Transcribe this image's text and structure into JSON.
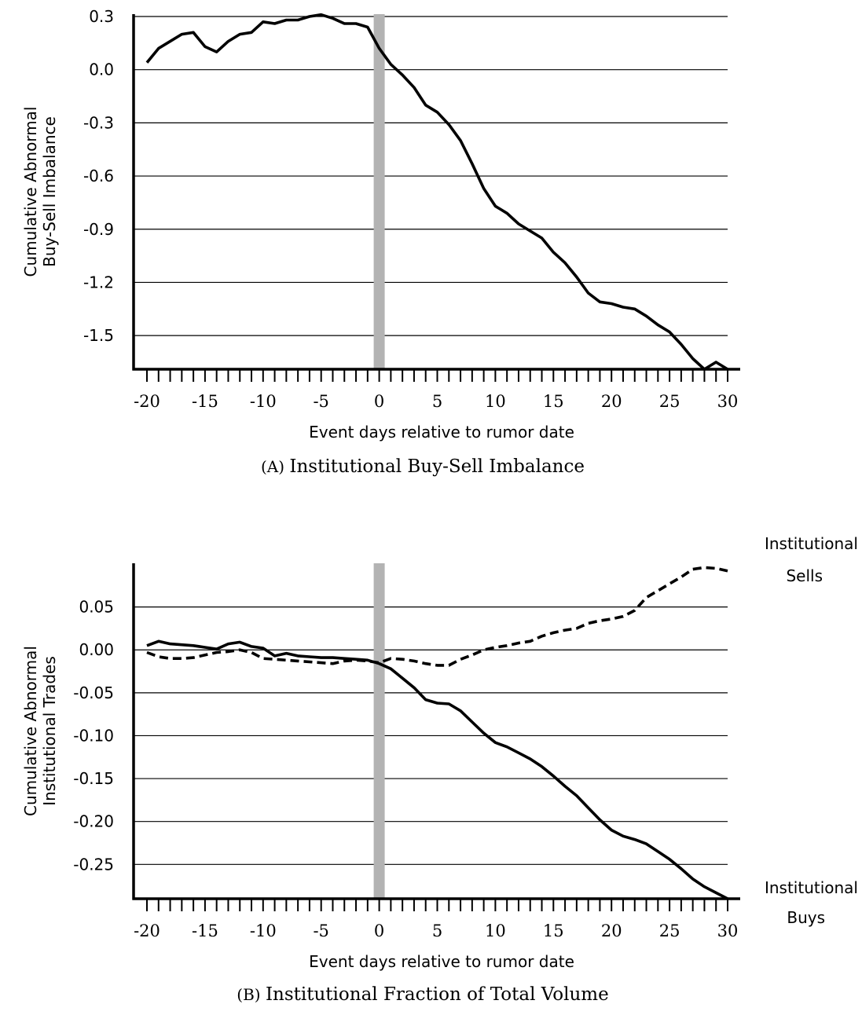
{
  "chart_data": [
    {
      "type": "line",
      "caption_letter": "(A)",
      "caption_text": "Institutional Buy-Sell Imbalance",
      "xlabel": "Event days relative to rumor date",
      "ylabel_lines": [
        "Cumulative Abnormal",
        "Buy-Sell Imbalance"
      ],
      "xlim": [
        -20,
        30
      ],
      "ylim": [
        -1.69,
        0.3
      ],
      "xticks": [
        -20,
        -15,
        -10,
        -5,
        0,
        5,
        10,
        15,
        20,
        25,
        30
      ],
      "yticks": [
        0.3,
        0.0,
        -0.3,
        -0.6,
        -0.9,
        -1.2,
        -1.5
      ],
      "ytick_labels": [
        "0.3",
        "0.0",
        "-0.3",
        "-0.6",
        "-0.9",
        "-1.2",
        "-1.5"
      ],
      "grid": "horizontal",
      "highlight_x": 0,
      "series": [
        {
          "style": "solid",
          "x": [
            -20,
            -19,
            -18,
            -17,
            -16,
            -15,
            -14,
            -13,
            -12,
            -11,
            -10,
            -9,
            -8,
            -7,
            -6,
            -5,
            -4,
            -3,
            -2,
            -1,
            0,
            1,
            2,
            3,
            4,
            5,
            6,
            7,
            8,
            9,
            10,
            11,
            12,
            13,
            14,
            15,
            16,
            17,
            18,
            19,
            20,
            21,
            22,
            23,
            24,
            25,
            26,
            27,
            28,
            29,
            30
          ],
          "y": [
            0.04,
            0.12,
            0.16,
            0.2,
            0.21,
            0.13,
            0.1,
            0.16,
            0.2,
            0.21,
            0.27,
            0.26,
            0.28,
            0.28,
            0.3,
            0.31,
            0.29,
            0.26,
            0.26,
            0.24,
            0.12,
            0.03,
            -0.03,
            -0.1,
            -0.2,
            -0.24,
            -0.31,
            -0.4,
            -0.53,
            -0.67,
            -0.77,
            -0.81,
            -0.87,
            -0.91,
            -0.95,
            -1.03,
            -1.09,
            -1.17,
            -1.26,
            -1.31,
            -1.32,
            -1.34,
            -1.35,
            -1.39,
            -1.44,
            -1.48,
            -1.55,
            -1.63,
            -1.69,
            -1.65,
            -1.69
          ]
        }
      ]
    },
    {
      "type": "line",
      "caption_letter": "(B)",
      "caption_text": "Institutional Fraction of Total Volume",
      "xlabel": "Event days relative to rumor date",
      "ylabel_lines": [
        "Cumulative Abnormal",
        "Institutional Trades"
      ],
      "xlim": [
        -20,
        30
      ],
      "ylim": [
        -0.29,
        0.1
      ],
      "xticks": [
        -20,
        -15,
        -10,
        -5,
        0,
        5,
        10,
        15,
        20,
        25,
        30
      ],
      "yticks": [
        0.05,
        0.0,
        -0.05,
        -0.1,
        -0.15,
        -0.2,
        -0.25
      ],
      "ytick_labels": [
        "0.05",
        "0.00",
        "-0.05",
        "-0.10",
        "-0.15",
        "-0.20",
        "-0.25"
      ],
      "grid": "horizontal",
      "highlight_x": 0,
      "series": [
        {
          "name_lines": [
            "Institutional",
            "Sells"
          ],
          "style": "dashed",
          "x": [
            -20,
            -19,
            -18,
            -17,
            -16,
            -15,
            -14,
            -13,
            -12,
            -11,
            -10,
            -9,
            -8,
            -7,
            -6,
            -5,
            -4,
            -3,
            -2,
            -1,
            0,
            1,
            2,
            3,
            4,
            5,
            6,
            7,
            8,
            9,
            10,
            11,
            12,
            13,
            14,
            15,
            16,
            17,
            18,
            19,
            20,
            21,
            22,
            23,
            24,
            25,
            26,
            27,
            28,
            29,
            30
          ],
          "y": [
            -0.003,
            -0.008,
            -0.01,
            -0.01,
            -0.009,
            -0.006,
            -0.003,
            -0.002,
            0.0,
            -0.003,
            -0.01,
            -0.011,
            -0.012,
            -0.013,
            -0.014,
            -0.015,
            -0.016,
            -0.013,
            -0.012,
            -0.013,
            -0.015,
            -0.01,
            -0.011,
            -0.013,
            -0.016,
            -0.018,
            -0.018,
            -0.011,
            -0.006,
            0.0,
            0.003,
            0.005,
            0.008,
            0.01,
            0.016,
            0.02,
            0.023,
            0.025,
            0.031,
            0.034,
            0.036,
            0.039,
            0.046,
            0.061,
            0.069,
            0.077,
            0.085,
            0.094,
            0.096,
            0.095,
            0.092
          ]
        },
        {
          "name_lines": [
            "Institutional",
            "Buys"
          ],
          "style": "solid",
          "x": [
            -20,
            -19,
            -18,
            -17,
            -16,
            -15,
            -14,
            -13,
            -12,
            -11,
            -10,
            -9,
            -8,
            -7,
            -6,
            -5,
            -4,
            -3,
            -2,
            -1,
            0,
            1,
            2,
            3,
            4,
            5,
            6,
            7,
            8,
            9,
            10,
            11,
            12,
            13,
            14,
            15,
            16,
            17,
            18,
            19,
            20,
            21,
            22,
            23,
            24,
            25,
            26,
            27,
            28,
            29,
            30
          ],
          "y": [
            0.005,
            0.01,
            0.007,
            0.006,
            0.005,
            0.003,
            0.001,
            0.007,
            0.009,
            0.004,
            0.002,
            -0.007,
            -0.004,
            -0.007,
            -0.008,
            -0.009,
            -0.009,
            -0.01,
            -0.011,
            -0.012,
            -0.016,
            -0.022,
            -0.033,
            -0.044,
            -0.058,
            -0.062,
            -0.063,
            -0.071,
            -0.084,
            -0.097,
            -0.108,
            -0.113,
            -0.12,
            -0.127,
            -0.136,
            -0.147,
            -0.159,
            -0.17,
            -0.184,
            -0.198,
            -0.21,
            -0.217,
            -0.221,
            -0.226,
            -0.235,
            -0.244,
            -0.255,
            -0.267,
            -0.276,
            -0.283,
            -0.29
          ]
        }
      ]
    }
  ]
}
